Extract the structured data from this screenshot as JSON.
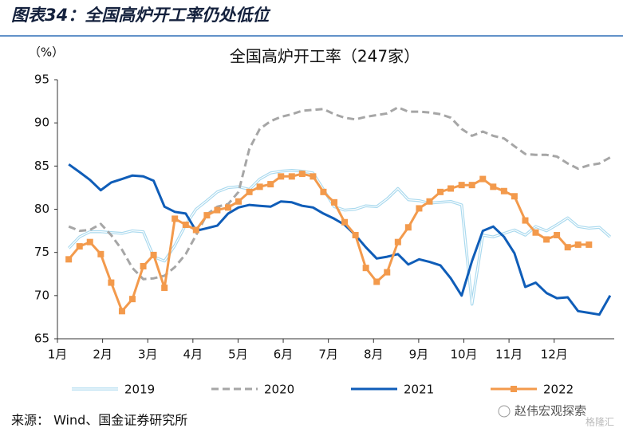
{
  "figure_title": "图表34：全国高炉开工率仍处低位",
  "source": "来源：   Wind、国金证券研究所",
  "watermark": "赵伟宏观探索",
  "watermark2": "格隆汇",
  "chart_data": {
    "type": "line",
    "title": "全国高炉开工率（247家）",
    "y_unit_label": "（%）",
    "x": [
      0.25,
      0.49,
      0.72,
      0.96,
      1.19,
      1.43,
      1.66,
      1.9,
      2.13,
      2.37,
      2.6,
      2.84,
      3.07,
      3.31,
      3.54,
      3.78,
      4.01,
      4.25,
      4.48,
      4.72,
      4.95,
      5.19,
      5.42,
      5.66,
      5.89,
      6.13,
      6.36,
      6.6,
      6.83,
      7.07,
      7.3,
      7.54,
      7.77,
      8.01,
      8.24,
      8.48,
      8.71,
      8.95,
      9.18,
      9.42,
      9.65,
      9.89,
      10.12,
      10.36,
      10.59,
      10.83,
      11.06,
      11.3,
      11.53,
      11.77,
      12.0,
      12.24
    ],
    "xlim": [
      0,
      12.33
    ],
    "xticks": [
      {
        "value": 0,
        "label": "1月"
      },
      {
        "value": 1,
        "label": "2月"
      },
      {
        "value": 2,
        "label": "3月"
      },
      {
        "value": 3,
        "label": "4月"
      },
      {
        "value": 4,
        "label": "5月"
      },
      {
        "value": 5,
        "label": "6月"
      },
      {
        "value": 6,
        "label": "7月"
      },
      {
        "value": 7,
        "label": "8月"
      },
      {
        "value": 8,
        "label": "9月"
      },
      {
        "value": 9,
        "label": "10月"
      },
      {
        "value": 10,
        "label": "11月"
      },
      {
        "value": 11,
        "label": "12月"
      }
    ],
    "ylim": [
      65,
      95
    ],
    "yticks": [
      65,
      70,
      75,
      80,
      85,
      90,
      95
    ],
    "grid": false,
    "legend": "bottom",
    "series": [
      {
        "name": "2019",
        "color": "#a9d9ee",
        "style": "double",
        "values": [
          75.5,
          76.8,
          77.4,
          77.4,
          77.3,
          77.2,
          77.5,
          77.4,
          74.5,
          74.0,
          75.8,
          78.2,
          80.0,
          81.0,
          82.0,
          82.5,
          82.6,
          82.3,
          83.5,
          84.2,
          84.4,
          84.5,
          84.4,
          84.2,
          82.3,
          80.3,
          79.9,
          80.0,
          80.4,
          80.3,
          81.2,
          82.4,
          81.1,
          81.0,
          80.7,
          80.8,
          80.9,
          80.5,
          69.0,
          77.0,
          76.8,
          77.2,
          77.6,
          77.0,
          78.0,
          77.5,
          78.2,
          79.0,
          78.0,
          77.8,
          77.9,
          76.8
        ]
      },
      {
        "name": "2020",
        "color": "#a6a6a6",
        "style": "dashed",
        "values": [
          78.0,
          77.5,
          77.6,
          78.3,
          77.0,
          75.3,
          73.2,
          71.9,
          72.0,
          72.3,
          73.3,
          74.8,
          77.0,
          79.4,
          80.3,
          80.6,
          82.0,
          87.0,
          89.3,
          90.2,
          90.7,
          91.0,
          91.4,
          91.5,
          91.6,
          91.0,
          90.6,
          90.4,
          90.7,
          90.9,
          91.1,
          91.8,
          91.3,
          91.3,
          91.2,
          91.0,
          90.6,
          89.3,
          88.5,
          89.0,
          88.5,
          88.2,
          87.3,
          86.4,
          86.3,
          86.3,
          86.1,
          85.3,
          84.7,
          85.1,
          85.3,
          86.0
        ]
      },
      {
        "name": "2021",
        "color": "#0f5db8",
        "style": "solid",
        "values": [
          85.2,
          84.3,
          83.4,
          82.2,
          83.1,
          83.5,
          83.9,
          83.8,
          83.3,
          80.3,
          79.7,
          79.5,
          77.5,
          77.8,
          78.1,
          79.5,
          80.2,
          80.5,
          80.4,
          80.3,
          80.9,
          80.8,
          80.4,
          80.2,
          79.5,
          78.9,
          78.2,
          77.0,
          75.6,
          74.3,
          74.5,
          74.8,
          73.6,
          74.2,
          73.9,
          73.5,
          72.0,
          70.0,
          74.0,
          77.5,
          78.0,
          76.8,
          74.9,
          71.0,
          71.5,
          70.3,
          69.7,
          69.8,
          68.2,
          68.0,
          67.8,
          70.0
        ]
      },
      {
        "name": "2022",
        "color": "#f39a4c",
        "style": "marker",
        "values": [
          74.2,
          75.7,
          76.2,
          74.8,
          71.5,
          68.2,
          69.6,
          73.4,
          74.7,
          70.9,
          78.9,
          78.2,
          77.6,
          79.3,
          79.9,
          80.2,
          80.9,
          82.0,
          82.6,
          82.9,
          83.8,
          83.8,
          84.1,
          83.8,
          82.0,
          80.8,
          78.5,
          77.0,
          73.2,
          71.6,
          72.7,
          76.2,
          77.9,
          80.1,
          80.9,
          82.0,
          82.4,
          82.8,
          82.8,
          83.5,
          82.6,
          82.1,
          81.5,
          78.7,
          77.3,
          76.5,
          77.0,
          75.6,
          75.9,
          75.9,
          null,
          null
        ]
      }
    ]
  }
}
